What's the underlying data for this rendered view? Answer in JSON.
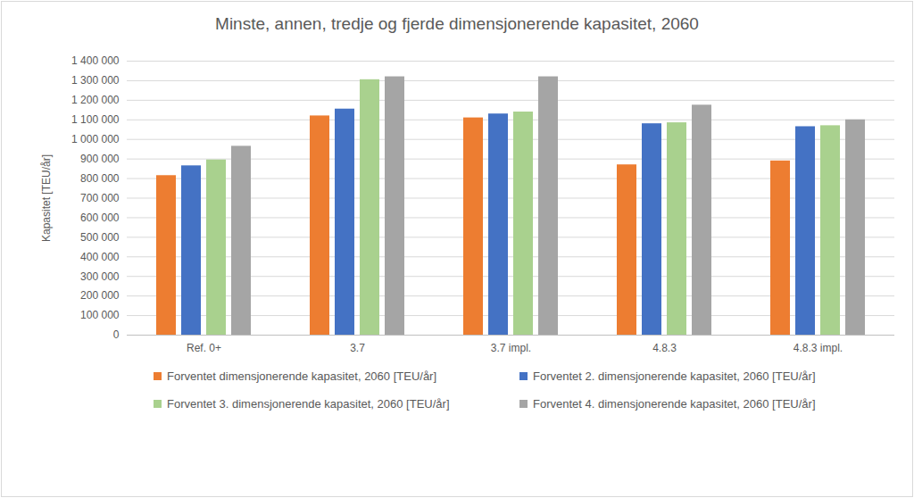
{
  "chart_data": {
    "type": "bar",
    "title": "Minste, annen, tredje og fjerde dimensjonerende kapasitet, 2060",
    "y_label": "Kapasitet [TEU/år]",
    "categories": [
      "Ref. 0+",
      "3.7",
      "3.7 impl.",
      "4.8.3",
      "4.8.3 impl."
    ],
    "series": [
      {
        "name": "Forventet dimensjonerende kapasitet, 2060 [TEU/år]",
        "color": "#ed7d31",
        "values": [
          815000,
          1120000,
          1110000,
          870000,
          890000
        ]
      },
      {
        "name": "Forventet 2. dimensjonerende kapasitet, 2060 [TEU/år]",
        "color": "#4472c4",
        "values": [
          865000,
          1155000,
          1130000,
          1080000,
          1065000
        ]
      },
      {
        "name": "Forventet 3. dimensjonerende kapasitet, 2060 [TEU/år]",
        "color": "#a9d18e",
        "values": [
          895000,
          1305000,
          1140000,
          1085000,
          1070000
        ]
      },
      {
        "name": "Forventet 4. dimensjonerende kapasitet, 2060 [TEU/år]",
        "color": "#a5a5a5",
        "values": [
          965000,
          1320000,
          1320000,
          1175000,
          1100000
        ]
      }
    ],
    "ylim": [
      0,
      1400000
    ],
    "yticks": [
      0,
      {
        "value": 100000,
        "label": "100 000"
      },
      {
        "value": 200000,
        "label": "200 000"
      },
      {
        "value": 300000,
        "label": "300 000"
      },
      {
        "value": 400000,
        "label": "400 000"
      },
      {
        "value": 500000,
        "label": "500 000"
      },
      {
        "value": 600000,
        "label": "600 000"
      },
      {
        "value": 700000,
        "label": "700 000"
      },
      {
        "value": 800000,
        "label": "800 000"
      },
      {
        "value": 900000,
        "label": "900 000"
      },
      {
        "value": 1000000,
        "label": "1 000 000"
      },
      {
        "value": 1100000,
        "label": "1 100 000"
      },
      {
        "value": 1200000,
        "label": "1 200 000"
      },
      {
        "value": 1300000,
        "label": "1 300 000"
      },
      {
        "value": 1400000,
        "label": "1 400 000"
      }
    ],
    "grid": true,
    "legend": "bottom"
  }
}
